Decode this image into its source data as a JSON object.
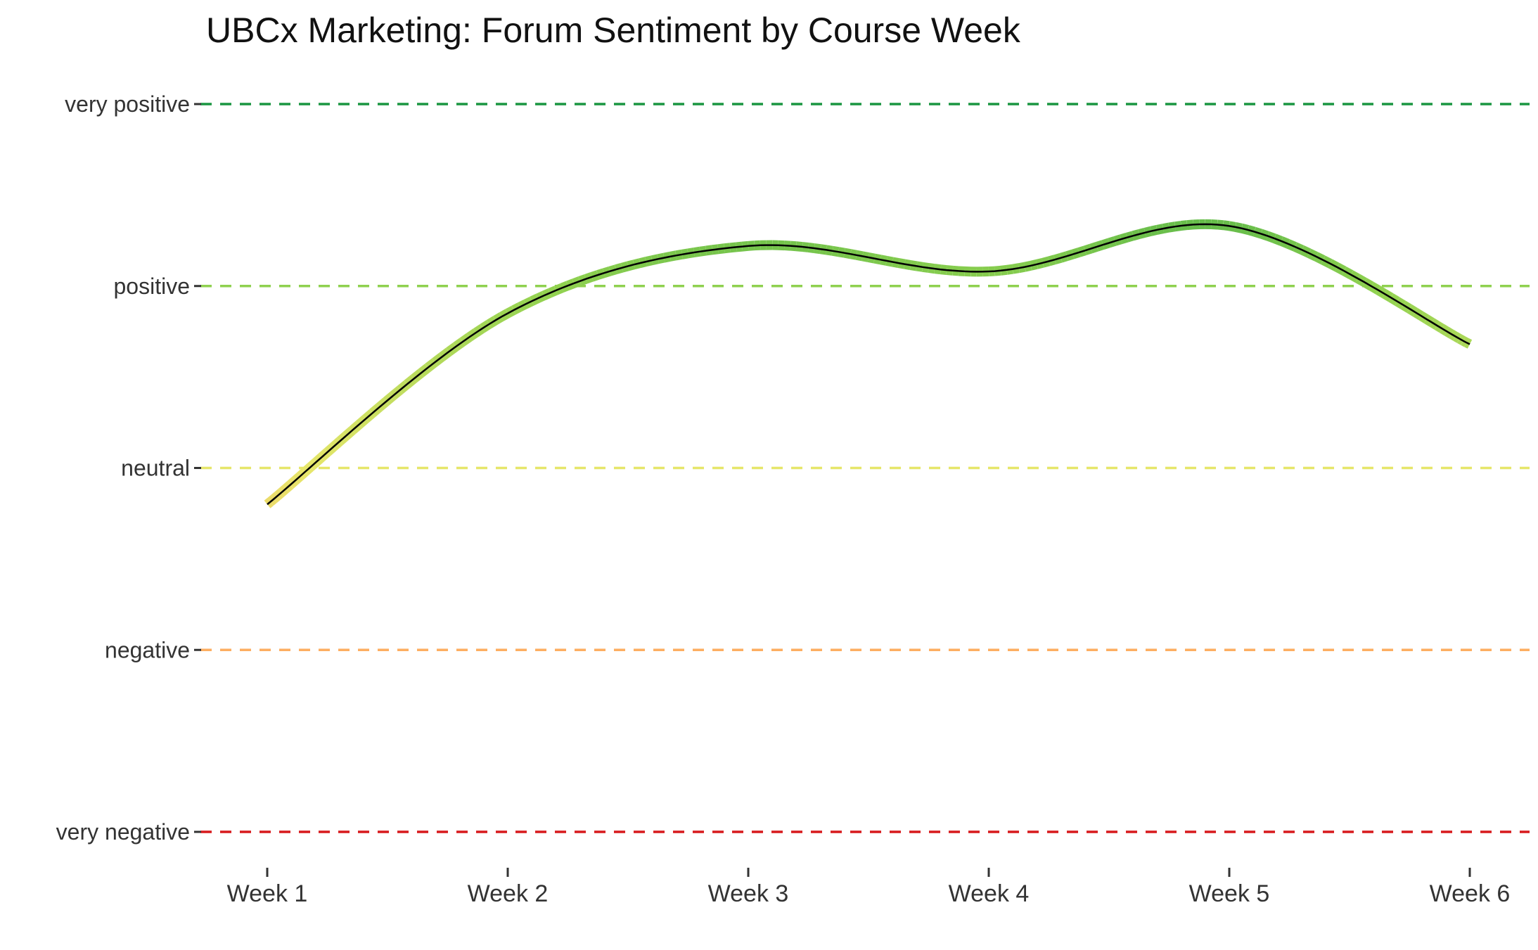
{
  "chart_data": {
    "type": "line",
    "title": "UBCx Marketing: Forum Sentiment by Course Week",
    "xlabel": "",
    "ylabel": "",
    "categories": [
      "Week 1",
      "Week 2",
      "Week 3",
      "Week 4",
      "Week 5",
      "Week 6"
    ],
    "y_levels": [
      {
        "label": "very negative",
        "value": -2,
        "color": "#d7191c"
      },
      {
        "label": "negative",
        "value": -1,
        "color": "#fdae61"
      },
      {
        "label": "neutral",
        "value": 0,
        "color": "#e6e66a"
      },
      {
        "label": "positive",
        "value": 1,
        "color": "#8fd14f"
      },
      {
        "label": "very positive",
        "value": 2,
        "color": "#1a9641"
      }
    ],
    "ylim": [
      -2,
      2
    ],
    "series": [
      {
        "values": [
          -0.2,
          0.85,
          1.22,
          1.08,
          1.33,
          0.68
        ]
      }
    ],
    "grid": "dashed horizontal lines at each sentiment level",
    "legend": "none"
  }
}
